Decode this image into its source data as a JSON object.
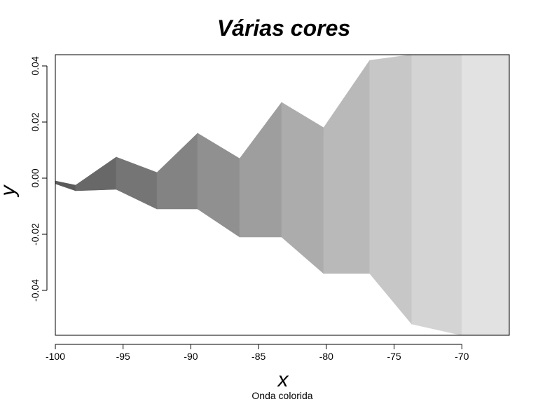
{
  "chart_data": {
    "type": "area",
    "title": "Várias cores",
    "subtitle": "Onda colorida",
    "xlabel": "x",
    "ylabel": "y",
    "xlim": [
      -100,
      -66.5
    ],
    "ylim": [
      -0.056,
      0.044
    ],
    "xticks": [
      -100,
      -95,
      -90,
      -85,
      -80,
      -75,
      -70
    ],
    "yticks": [
      -0.04,
      -0.02,
      0.0,
      0.02,
      0.04
    ],
    "xtick_labels": [
      "-100",
      "-95",
      "-90",
      "-85",
      "-80",
      "-75",
      "-70"
    ],
    "ytick_labels": [
      "-0.04",
      "-0.02",
      "0.00",
      "0.02",
      "0.04"
    ],
    "color_start": "#5a5a5a",
    "color_end": "#e2e2e2",
    "series": [
      {
        "x": [
          -100,
          -98.5,
          -95.5,
          -92.5,
          -89.5,
          -86.4,
          -83.3,
          -80.2,
          -76.8,
          -73.7,
          -70.0,
          -66.5
        ],
        "upper": [
          -0.001,
          -0.0025,
          0.0075,
          0.002,
          0.016,
          0.007,
          0.027,
          0.018,
          0.042,
          0.044,
          0.044,
          0.044
        ],
        "lower": [
          -0.002,
          -0.0045,
          -0.004,
          -0.011,
          -0.011,
          -0.021,
          -0.021,
          -0.034,
          -0.034,
          -0.052,
          -0.056,
          -0.056
        ]
      }
    ]
  }
}
